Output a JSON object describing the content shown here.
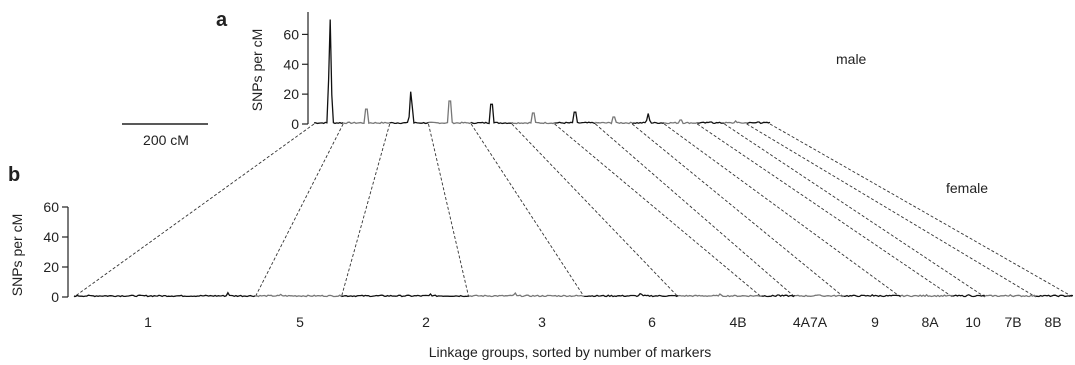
{
  "chart_data": [
    {
      "type": "line",
      "panel_letter": "a",
      "ylabel": "SNPs per cM",
      "ylim": [
        0,
        75
      ],
      "yticks": [
        0,
        20,
        40,
        60
      ],
      "annotation": "male",
      "scale_bar": {
        "value_cM": 200,
        "label": "200 cM"
      },
      "linkage_groups": [
        "1",
        "5",
        "2",
        "3",
        "6",
        "4B",
        "4A",
        "7A",
        "9",
        "8A",
        "10",
        "7B",
        "8B"
      ],
      "peaks_snps_per_cm": [
        75,
        15,
        25,
        23,
        20,
        11,
        12,
        7,
        7,
        4,
        2,
        2,
        2
      ],
      "baseline_snps_per_cm": 1
    },
    {
      "type": "line",
      "panel_letter": "b",
      "ylabel": "SNPs per cM",
      "ylim": [
        0,
        60
      ],
      "yticks": [
        0,
        20,
        40,
        60
      ],
      "annotation": "female",
      "xlabel": "Linkage groups, sorted by number of markers",
      "linkage_groups": [
        "1",
        "5",
        "2",
        "3",
        "6",
        "4B",
        "4A",
        "7A",
        "9",
        "8A",
        "10",
        "7B",
        "8B"
      ],
      "x_labels": [
        "1",
        "5",
        "2",
        "3",
        "6",
        "4B",
        "4A7A",
        "9",
        "8A",
        "10",
        "7B",
        "8B"
      ],
      "peaks_snps_per_cm": [
        3,
        2,
        2,
        3,
        3,
        2,
        2,
        2,
        1.5,
        1.5,
        1.5,
        1.5,
        1.5
      ],
      "baseline_snps_per_cm": 1
    }
  ],
  "colors": {
    "odd_group": "#111111",
    "even_group": "#777777",
    "dashed": "#333333"
  }
}
